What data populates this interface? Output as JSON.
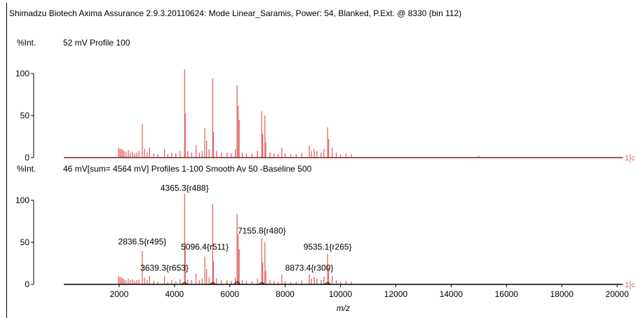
{
  "header": {
    "title": "Shimadzu Biotech Axima Assurance 2.9.3.20110624: Mode Linear_Saramis, Power: 54, Blanked, P.Ext. @ 8330 (bin 112)"
  },
  "colors": {
    "spectrum": "#e06666",
    "axis": "#000000",
    "baseline": "#000000"
  },
  "chart_data": [
    {
      "type": "line",
      "panel": "top",
      "ylabel": "%Int.",
      "info": "52 mV  Profile 100",
      "end_label": "1[c",
      "xlim": [
        0,
        20200
      ],
      "ylim": [
        0,
        110
      ],
      "yticks": [
        0,
        50,
        100
      ],
      "peaks": [
        {
          "x": 1980,
          "y": 12
        },
        {
          "x": 2030,
          "y": 10
        },
        {
          "x": 2080,
          "y": 11
        },
        {
          "x": 2130,
          "y": 9
        },
        {
          "x": 2180,
          "y": 8
        },
        {
          "x": 2250,
          "y": 7
        },
        {
          "x": 2330,
          "y": 9
        },
        {
          "x": 2400,
          "y": 6
        },
        {
          "x": 2480,
          "y": 7
        },
        {
          "x": 2560,
          "y": 5
        },
        {
          "x": 2640,
          "y": 6
        },
        {
          "x": 2720,
          "y": 8
        },
        {
          "x": 2836,
          "y": 40
        },
        {
          "x": 2920,
          "y": 10
        },
        {
          "x": 3010,
          "y": 6
        },
        {
          "x": 3100,
          "y": 12
        },
        {
          "x": 3250,
          "y": 5
        },
        {
          "x": 3400,
          "y": 4
        },
        {
          "x": 3639,
          "y": 10
        },
        {
          "x": 3760,
          "y": 4
        },
        {
          "x": 3900,
          "y": 6
        },
        {
          "x": 4050,
          "y": 5
        },
        {
          "x": 4200,
          "y": 8
        },
        {
          "x": 4365,
          "y": 105
        },
        {
          "x": 4390,
          "y": 52
        },
        {
          "x": 4480,
          "y": 8
        },
        {
          "x": 4620,
          "y": 6
        },
        {
          "x": 4780,
          "y": 15
        },
        {
          "x": 4900,
          "y": 6
        },
        {
          "x": 5000,
          "y": 8
        },
        {
          "x": 5096,
          "y": 35
        },
        {
          "x": 5160,
          "y": 20
        },
        {
          "x": 5250,
          "y": 10
        },
        {
          "x": 5381,
          "y": 94
        },
        {
          "x": 5410,
          "y": 30
        },
        {
          "x": 5520,
          "y": 8
        },
        {
          "x": 5700,
          "y": 6
        },
        {
          "x": 5900,
          "y": 6
        },
        {
          "x": 6050,
          "y": 5
        },
        {
          "x": 6200,
          "y": 10
        },
        {
          "x": 6263,
          "y": 86
        },
        {
          "x": 6300,
          "y": 62
        },
        {
          "x": 6340,
          "y": 45
        },
        {
          "x": 6450,
          "y": 6
        },
        {
          "x": 6600,
          "y": 5
        },
        {
          "x": 6800,
          "y": 5
        },
        {
          "x": 7000,
          "y": 8
        },
        {
          "x": 7155,
          "y": 55
        },
        {
          "x": 7190,
          "y": 28
        },
        {
          "x": 7268,
          "y": 50
        },
        {
          "x": 7300,
          "y": 18
        },
        {
          "x": 7450,
          "y": 6
        },
        {
          "x": 7600,
          "y": 5
        },
        {
          "x": 7750,
          "y": 4
        },
        {
          "x": 7880,
          "y": 12
        },
        {
          "x": 8000,
          "y": 5
        },
        {
          "x": 8200,
          "y": 4
        },
        {
          "x": 8400,
          "y": 4
        },
        {
          "x": 8600,
          "y": 6
        },
        {
          "x": 8873,
          "y": 14
        },
        {
          "x": 8950,
          "y": 8
        },
        {
          "x": 9050,
          "y": 10
        },
        {
          "x": 9150,
          "y": 8
        },
        {
          "x": 9300,
          "y": 6
        },
        {
          "x": 9400,
          "y": 10
        },
        {
          "x": 9535,
          "y": 36
        },
        {
          "x": 9570,
          "y": 22
        },
        {
          "x": 9700,
          "y": 12
        },
        {
          "x": 9850,
          "y": 6
        },
        {
          "x": 10000,
          "y": 4
        },
        {
          "x": 10200,
          "y": 5
        },
        {
          "x": 10400,
          "y": 4
        },
        {
          "x": 15000,
          "y": 2
        }
      ]
    },
    {
      "type": "line",
      "panel": "bottom",
      "ylabel": "%Int.",
      "info": "46 mV[sum= 4564 mV]  Profiles 1-100 Smooth Av 50 -Baseline 500",
      "end_label": "1[c",
      "xlabel": "m/z",
      "xlim": [
        0,
        20200
      ],
      "ylim": [
        0,
        110
      ],
      "yticks": [
        0,
        50,
        100
      ],
      "xticks": [
        2000,
        4000,
        6000,
        8000,
        10000,
        12000,
        14000,
        16000,
        18000,
        20000
      ],
      "annotations": [
        {
          "x": 4365.3,
          "y": 108,
          "text": "4365.3{r488}"
        },
        {
          "x": 2836.5,
          "y": 44,
          "text": "2836.5{r495}"
        },
        {
          "x": 5096.4,
          "y": 38,
          "text": "5096.4{r511}"
        },
        {
          "x": 7155.8,
          "y": 57,
          "text": "7155.8{r480}"
        },
        {
          "x": 9535.1,
          "y": 38,
          "text": "9535.1{r265}"
        },
        {
          "x": 3639.3,
          "y": 13,
          "text": "3639.3{r653}"
        },
        {
          "x": 8873.4,
          "y": 13,
          "text": "8873.4{r300}"
        }
      ],
      "peaks": [
        {
          "x": 1980,
          "y": 10
        },
        {
          "x": 2030,
          "y": 8
        },
        {
          "x": 2080,
          "y": 9
        },
        {
          "x": 2130,
          "y": 7
        },
        {
          "x": 2180,
          "y": 6
        },
        {
          "x": 2250,
          "y": 5
        },
        {
          "x": 2330,
          "y": 7
        },
        {
          "x": 2400,
          "y": 5
        },
        {
          "x": 2480,
          "y": 6
        },
        {
          "x": 2560,
          "y": 4
        },
        {
          "x": 2640,
          "y": 5
        },
        {
          "x": 2720,
          "y": 6
        },
        {
          "x": 2836,
          "y": 40
        },
        {
          "x": 2920,
          "y": 8
        },
        {
          "x": 3010,
          "y": 5
        },
        {
          "x": 3100,
          "y": 10
        },
        {
          "x": 3250,
          "y": 4
        },
        {
          "x": 3400,
          "y": 3
        },
        {
          "x": 3639,
          "y": 10
        },
        {
          "x": 3760,
          "y": 3
        },
        {
          "x": 3900,
          "y": 5
        },
        {
          "x": 4050,
          "y": 4
        },
        {
          "x": 4200,
          "y": 6
        },
        {
          "x": 4365,
          "y": 108
        },
        {
          "x": 4390,
          "y": 50
        },
        {
          "x": 4480,
          "y": 6
        },
        {
          "x": 4620,
          "y": 5
        },
        {
          "x": 4780,
          "y": 13
        },
        {
          "x": 4900,
          "y": 5
        },
        {
          "x": 5000,
          "y": 7
        },
        {
          "x": 5096,
          "y": 33
        },
        {
          "x": 5160,
          "y": 18
        },
        {
          "x": 5250,
          "y": 8
        },
        {
          "x": 5381,
          "y": 96
        },
        {
          "x": 5410,
          "y": 28
        },
        {
          "x": 5520,
          "y": 7
        },
        {
          "x": 5700,
          "y": 5
        },
        {
          "x": 5900,
          "y": 5
        },
        {
          "x": 6050,
          "y": 4
        },
        {
          "x": 6200,
          "y": 8
        },
        {
          "x": 6263,
          "y": 84
        },
        {
          "x": 6300,
          "y": 60
        },
        {
          "x": 6340,
          "y": 42
        },
        {
          "x": 6450,
          "y": 5
        },
        {
          "x": 6600,
          "y": 4
        },
        {
          "x": 6800,
          "y": 4
        },
        {
          "x": 7000,
          "y": 7
        },
        {
          "x": 7155,
          "y": 55
        },
        {
          "x": 7190,
          "y": 26
        },
        {
          "x": 7268,
          "y": 50
        },
        {
          "x": 7300,
          "y": 16
        },
        {
          "x": 7450,
          "y": 5
        },
        {
          "x": 7600,
          "y": 4
        },
        {
          "x": 7750,
          "y": 3
        },
        {
          "x": 7880,
          "y": 12
        },
        {
          "x": 8000,
          "y": 4
        },
        {
          "x": 8200,
          "y": 3
        },
        {
          "x": 8400,
          "y": 3
        },
        {
          "x": 8600,
          "y": 5
        },
        {
          "x": 8873,
          "y": 12
        },
        {
          "x": 8950,
          "y": 7
        },
        {
          "x": 9050,
          "y": 9
        },
        {
          "x": 9150,
          "y": 7
        },
        {
          "x": 9300,
          "y": 5
        },
        {
          "x": 9400,
          "y": 9
        },
        {
          "x": 9535,
          "y": 36
        },
        {
          "x": 9570,
          "y": 20
        },
        {
          "x": 9700,
          "y": 10
        },
        {
          "x": 9850,
          "y": 5
        },
        {
          "x": 10000,
          "y": 3
        },
        {
          "x": 10200,
          "y": 4
        },
        {
          "x": 10400,
          "y": 3
        }
      ],
      "baseline_bumps": [
        {
          "x": 4365,
          "y": 2
        },
        {
          "x": 5381,
          "y": 2
        },
        {
          "x": 6263,
          "y": 3
        },
        {
          "x": 7155,
          "y": 2
        },
        {
          "x": 9535,
          "y": 2
        }
      ]
    }
  ]
}
